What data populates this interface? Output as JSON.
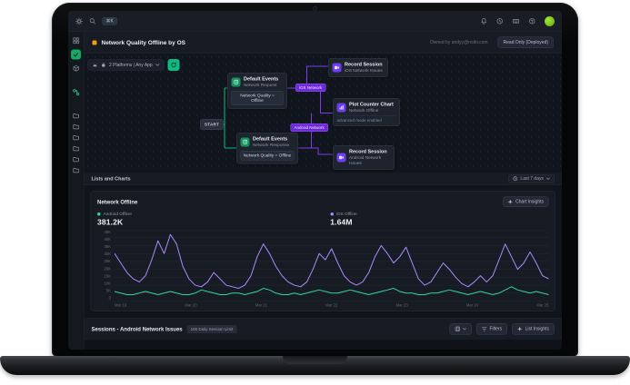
{
  "navbar": {
    "hotkey": "⌘K"
  },
  "header": {
    "title": "Network Quality Offline by OS",
    "owned_by": "Owned by andyy@noibi.com",
    "readonly_button": "Read Only (Deployed)"
  },
  "canvas": {
    "platform_selector": "2 Platforms | Any App",
    "start_label": "START",
    "nodes": [
      {
        "title": "Default Events",
        "subtitle": "Network Request",
        "condition": "Network Quality = Offline"
      },
      {
        "title": "Default Events",
        "subtitle": "Network Response",
        "condition": "Network Quality = Offline"
      },
      {
        "title": "Record Session",
        "subtitle": "iOS Network Issues"
      },
      {
        "title": "Plot Counter Chart",
        "subtitle": "Network Offline",
        "footer": "advanced mode enabled"
      },
      {
        "title": "Record Session",
        "subtitle": "Android Network Issues"
      }
    ],
    "edges": [
      "iOS Network",
      "Android Network"
    ]
  },
  "lists_section": {
    "title": "Lists and Charts",
    "time_range": "Last 7 days"
  },
  "chart_card": {
    "title": "Network Offline",
    "insights_button": "Chart Insights",
    "legend": [
      {
        "label": "Android Offline",
        "value": "381.2K"
      },
      {
        "label": "iOS Offline",
        "value": "1.64M"
      }
    ]
  },
  "chart_data": {
    "type": "line",
    "title": "Network Offline",
    "x_labels": [
      "Mar 19",
      "Mar 20",
      "Mar 21",
      "Mar 22",
      "Mar 23",
      "Mar 24",
      "Mar 25"
    ],
    "ylabel": "",
    "xlabel": "",
    "ymax": 45,
    "unit": "K",
    "yticks": [
      "45K",
      "40K",
      "35K",
      "30K",
      "25K",
      "20K",
      "15K",
      "10K",
      "5K",
      "0"
    ],
    "legend_position": "top",
    "grid": true,
    "series": [
      {
        "name": "iOS Offline",
        "color": "#a78bfa",
        "total": "1.64M",
        "values": [
          30,
          24,
          18,
          14,
          12,
          16,
          26,
          38,
          30,
          42,
          36,
          22,
          14,
          10,
          9,
          12,
          18,
          14,
          10,
          9,
          8,
          10,
          16,
          28,
          36,
          30,
          22,
          16,
          12,
          10,
          9,
          12,
          20,
          30,
          26,
          33,
          24,
          16,
          12,
          10,
          12,
          18,
          28,
          35,
          30,
          24,
          28,
          34,
          24,
          14,
          10,
          12,
          18,
          24,
          20,
          15,
          11,
          9,
          12,
          16,
          12,
          16,
          26,
          36,
          28,
          20,
          24,
          31,
          24,
          16,
          14
        ]
      },
      {
        "name": "Android Offline",
        "color": "#34d399",
        "total": "381.2K",
        "values": [
          6,
          5,
          4,
          4,
          5,
          6,
          5,
          4,
          5,
          6,
          5,
          4,
          4,
          5,
          7,
          6,
          5,
          4,
          4,
          5,
          5,
          4,
          5,
          6,
          8,
          7,
          5,
          4,
          4,
          5,
          4,
          5,
          6,
          7,
          6,
          5,
          5,
          6,
          7,
          6,
          5,
          4,
          5,
          6,
          7,
          8,
          6,
          5,
          5,
          4,
          4,
          5,
          5,
          6,
          7,
          6,
          5,
          4,
          5,
          6,
          5,
          4,
          5,
          7,
          9,
          7,
          6,
          5,
          6,
          5,
          4
        ]
      }
    ]
  },
  "sessions": {
    "title": "Sessions - Android Network Issues",
    "badge": "100 Daily Session Limit",
    "filters_button": "Filters",
    "insights_button": "List Insights"
  },
  "colors": {
    "accent_green": "#10b981",
    "accent_purple": "#7c3aed",
    "orange": "#f59e0b",
    "line_green": "#34d399",
    "line_purple": "#a78bfa"
  }
}
